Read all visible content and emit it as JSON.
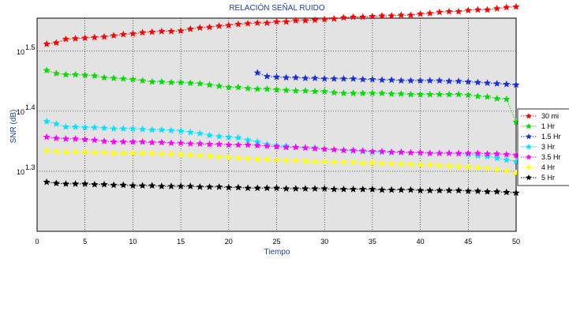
{
  "chart_data": {
    "type": "line",
    "title": "RELACIÓN SEÑAL RUIDO",
    "xlabel": "Tiempo",
    "ylabel": "SNR (dB)",
    "xlim": [
      0,
      50
    ],
    "xticks": [
      0,
      5,
      10,
      15,
      20,
      25,
      30,
      35,
      40,
      45,
      50
    ],
    "yscale": "log10",
    "ylim_log10": [
      1.2,
      1.555
    ],
    "yticks": [
      {
        "exp": 1.3,
        "base": "10",
        "sup": "1.3"
      },
      {
        "exp": 1.4,
        "base": "10",
        "sup": "1.4"
      },
      {
        "exp": 1.5,
        "base": "10",
        "sup": "1.5"
      }
    ],
    "grid": true,
    "legend_position": "right-outside",
    "series": [
      {
        "name": "30 mi",
        "color": "#ff0000",
        "style": "dotted",
        "x_start": 1,
        "log10_values": [
          1.512,
          1.514,
          1.52,
          1.521,
          1.522,
          1.523,
          1.524,
          1.526,
          1.528,
          1.529,
          1.531,
          1.532,
          1.533,
          1.533,
          1.534,
          1.537,
          1.539,
          1.54,
          1.542,
          1.543,
          1.545,
          1.546,
          1.547,
          1.547,
          1.549,
          1.549,
          1.551,
          1.551,
          1.552,
          1.553,
          1.554,
          1.556,
          1.557,
          1.557,
          1.558,
          1.559,
          1.559,
          1.56,
          1.56,
          1.562,
          1.563,
          1.565,
          1.566,
          1.566,
          1.568,
          1.569,
          1.569,
          1.571,
          1.573,
          1.574
        ]
      },
      {
        "name": "1 Hr",
        "color": "#00dd00",
        "style": "dotted",
        "x_start": 1,
        "log10_values": [
          1.468,
          1.463,
          1.461,
          1.461,
          1.46,
          1.459,
          1.456,
          1.455,
          1.454,
          1.453,
          1.451,
          1.449,
          1.449,
          1.448,
          1.448,
          1.447,
          1.446,
          1.444,
          1.442,
          1.44,
          1.44,
          1.438,
          1.437,
          1.437,
          1.436,
          1.435,
          1.434,
          1.434,
          1.433,
          1.433,
          1.431,
          1.43,
          1.43,
          1.43,
          1.43,
          1.43,
          1.429,
          1.429,
          1.428,
          1.428,
          1.428,
          1.428,
          1.428,
          1.428,
          1.427,
          1.425,
          1.424,
          1.421,
          1.42,
          1.382
        ]
      },
      {
        "name": "1.5 Hr",
        "color": "#1a2fd9",
        "style": "dotted",
        "x_start": 23,
        "log10_values": [
          1.464,
          1.458,
          1.457,
          1.456,
          1.456,
          1.455,
          1.455,
          1.454,
          1.454,
          1.454,
          1.454,
          1.453,
          1.453,
          1.452,
          1.452,
          1.451,
          1.451,
          1.451,
          1.451,
          1.451,
          1.45,
          1.45,
          1.449,
          1.448,
          1.447,
          1.446,
          1.445,
          1.444
        ]
      },
      {
        "name": "3 Hr",
        "color": "#00e5ff",
        "style": "dotted",
        "x_start": 1,
        "log10_values": [
          1.383,
          1.379,
          1.374,
          1.374,
          1.373,
          1.373,
          1.372,
          1.371,
          1.371,
          1.371,
          1.37,
          1.369,
          1.369,
          1.368,
          1.367,
          1.365,
          1.363,
          1.36,
          1.358,
          1.357,
          1.356,
          1.352,
          1.349,
          1.345,
          1.343,
          1.342,
          1.34,
          1.339,
          1.339,
          1.337,
          1.336,
          1.335,
          1.334,
          1.333,
          1.332,
          1.332,
          1.331,
          1.331,
          1.331,
          1.331,
          1.33,
          1.33,
          1.33,
          1.329,
          1.328,
          1.326,
          1.325,
          1.322,
          1.319,
          1.316
        ]
      },
      {
        "name": "3.5 Hr",
        "color": "#ff00ff",
        "style": "dotted",
        "x_start": 1,
        "log10_values": [
          1.357,
          1.355,
          1.354,
          1.354,
          1.353,
          1.352,
          1.35,
          1.349,
          1.349,
          1.349,
          1.349,
          1.348,
          1.348,
          1.347,
          1.347,
          1.346,
          1.346,
          1.345,
          1.345,
          1.344,
          1.344,
          1.344,
          1.343,
          1.342,
          1.341,
          1.34,
          1.34,
          1.339,
          1.338,
          1.337,
          1.336,
          1.335,
          1.335,
          1.334,
          1.333,
          1.333,
          1.332,
          1.332,
          1.331,
          1.331,
          1.33,
          1.33,
          1.33,
          1.33,
          1.33,
          1.33,
          1.329,
          1.329,
          1.328,
          1.327
        ]
      },
      {
        "name": "4 Hr",
        "color": "#ffff00",
        "style": "dotted",
        "x_start": 1,
        "log10_values": [
          1.334,
          1.333,
          1.332,
          1.332,
          1.332,
          1.331,
          1.331,
          1.33,
          1.33,
          1.33,
          1.33,
          1.33,
          1.329,
          1.329,
          1.328,
          1.327,
          1.326,
          1.325,
          1.324,
          1.323,
          1.322,
          1.321,
          1.32,
          1.32,
          1.319,
          1.318,
          1.318,
          1.317,
          1.316,
          1.316,
          1.315,
          1.315,
          1.315,
          1.314,
          1.314,
          1.313,
          1.313,
          1.312,
          1.312,
          1.311,
          1.311,
          1.31,
          1.309,
          1.308,
          1.307,
          1.306,
          1.305,
          1.303,
          1.301,
          1.297
        ]
      },
      {
        "name": "5 Hr",
        "color": "#000000",
        "style": "dotted",
        "x_start": 1,
        "log10_values": [
          1.282,
          1.28,
          1.279,
          1.279,
          1.279,
          1.278,
          1.278,
          1.277,
          1.277,
          1.276,
          1.276,
          1.276,
          1.275,
          1.275,
          1.275,
          1.275,
          1.274,
          1.274,
          1.274,
          1.273,
          1.273,
          1.272,
          1.272,
          1.272,
          1.272,
          1.271,
          1.271,
          1.271,
          1.271,
          1.271,
          1.27,
          1.27,
          1.27,
          1.27,
          1.27,
          1.269,
          1.269,
          1.269,
          1.269,
          1.268,
          1.268,
          1.268,
          1.268,
          1.268,
          1.267,
          1.267,
          1.266,
          1.266,
          1.265,
          1.264
        ]
      }
    ]
  }
}
